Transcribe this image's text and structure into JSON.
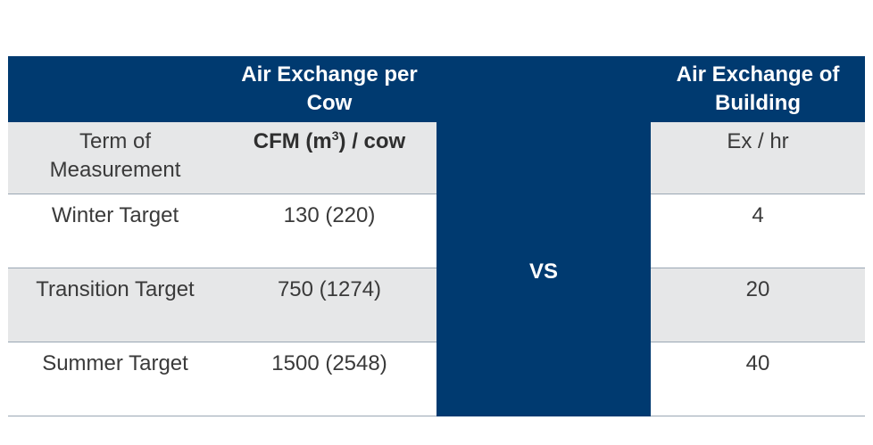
{
  "header": {
    "col1": "",
    "col2": "Air Exchange per Cow",
    "col3": "",
    "col4": "Air Exchange of Building"
  },
  "subheader": {
    "term": "Term of Measurement",
    "unit_prefix": "CFM (m",
    "unit_sup": "3",
    "unit_suffix": ") / cow",
    "building_unit": "Ex / hr"
  },
  "vs_label": "VS",
  "rows": [
    {
      "term": "Winter Target",
      "per_cow": "130 (220)",
      "building": "4"
    },
    {
      "term": "Transition Target",
      "per_cow": "750 (1274)",
      "building": "20"
    },
    {
      "term": "Summer Target",
      "per_cow": "1500 (2548)",
      "building": "40"
    }
  ]
}
